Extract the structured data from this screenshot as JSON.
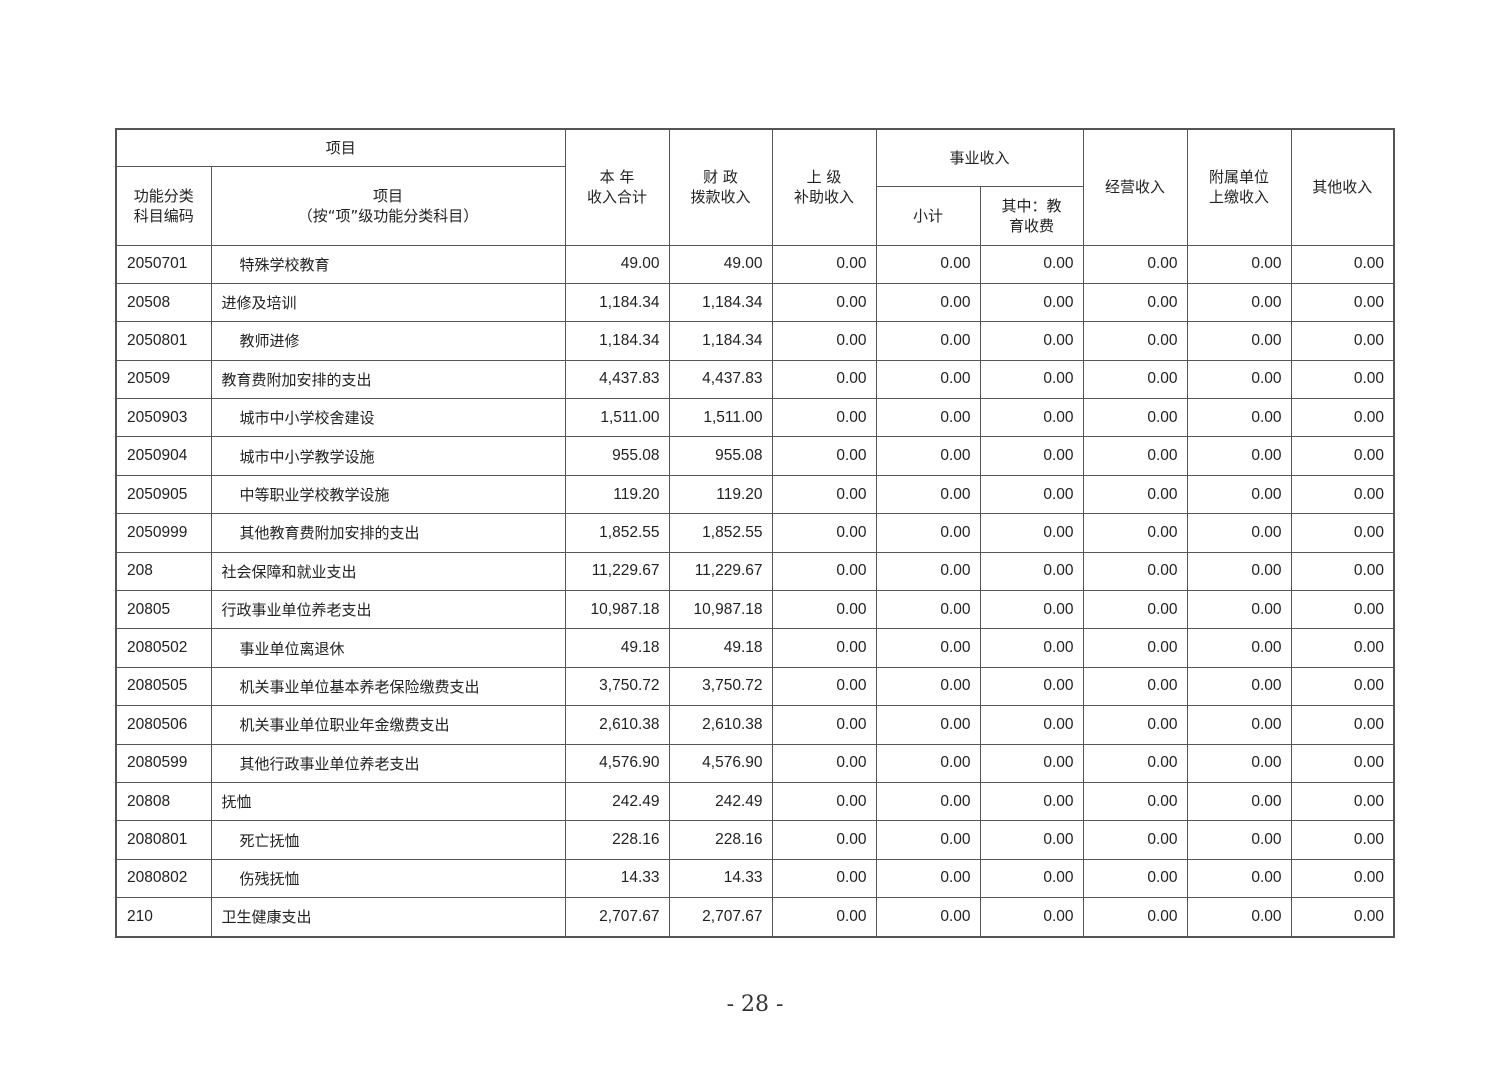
{
  "header": {
    "item_group": "项目",
    "code": "功能分类\n科目编码",
    "item": "项目",
    "item_note": "（按“项”级功能分类科目）",
    "total": "本 年\n收入合计",
    "fiscal": "财 政\n拨款收入",
    "superior": "上 级\n补助收入",
    "business": "事业收入",
    "subtotal": "小计",
    "edu_fee": "其中：教\n育收费",
    "operating": "经营收入",
    "affiliated": "附属单位\n上缴收入",
    "other": "其他收入"
  },
  "rows": [
    {
      "code": "2050701",
      "name": "特殊学校教育",
      "sub": true,
      "values": [
        "49.00",
        "49.00",
        "0.00",
        "0.00",
        "0.00",
        "0.00",
        "0.00",
        "0.00"
      ]
    },
    {
      "code": "20508",
      "name": "进修及培训",
      "sub": false,
      "values": [
        "1,184.34",
        "1,184.34",
        "0.00",
        "0.00",
        "0.00",
        "0.00",
        "0.00",
        "0.00"
      ]
    },
    {
      "code": "2050801",
      "name": "教师进修",
      "sub": true,
      "values": [
        "1,184.34",
        "1,184.34",
        "0.00",
        "0.00",
        "0.00",
        "0.00",
        "0.00",
        "0.00"
      ]
    },
    {
      "code": "20509",
      "name": "教育费附加安排的支出",
      "sub": false,
      "values": [
        "4,437.83",
        "4,437.83",
        "0.00",
        "0.00",
        "0.00",
        "0.00",
        "0.00",
        "0.00"
      ]
    },
    {
      "code": "2050903",
      "name": "城市中小学校舍建设",
      "sub": true,
      "values": [
        "1,511.00",
        "1,511.00",
        "0.00",
        "0.00",
        "0.00",
        "0.00",
        "0.00",
        "0.00"
      ]
    },
    {
      "code": "2050904",
      "name": "城市中小学教学设施",
      "sub": true,
      "values": [
        "955.08",
        "955.08",
        "0.00",
        "0.00",
        "0.00",
        "0.00",
        "0.00",
        "0.00"
      ]
    },
    {
      "code": "2050905",
      "name": "中等职业学校教学设施",
      "sub": true,
      "values": [
        "119.20",
        "119.20",
        "0.00",
        "0.00",
        "0.00",
        "0.00",
        "0.00",
        "0.00"
      ]
    },
    {
      "code": "2050999",
      "name": "其他教育费附加安排的支出",
      "sub": true,
      "values": [
        "1,852.55",
        "1,852.55",
        "0.00",
        "0.00",
        "0.00",
        "0.00",
        "0.00",
        "0.00"
      ]
    },
    {
      "code": "208",
      "name": "社会保障和就业支出",
      "sub": false,
      "values": [
        "11,229.67",
        "11,229.67",
        "0.00",
        "0.00",
        "0.00",
        "0.00",
        "0.00",
        "0.00"
      ]
    },
    {
      "code": "20805",
      "name": "行政事业单位养老支出",
      "sub": false,
      "values": [
        "10,987.18",
        "10,987.18",
        "0.00",
        "0.00",
        "0.00",
        "0.00",
        "0.00",
        "0.00"
      ]
    },
    {
      "code": "2080502",
      "name": "事业单位离退休",
      "sub": true,
      "values": [
        "49.18",
        "49.18",
        "0.00",
        "0.00",
        "0.00",
        "0.00",
        "0.00",
        "0.00"
      ]
    },
    {
      "code": "2080505",
      "name": "机关事业单位基本养老保险缴费支出",
      "sub": true,
      "values": [
        "3,750.72",
        "3,750.72",
        "0.00",
        "0.00",
        "0.00",
        "0.00",
        "0.00",
        "0.00"
      ]
    },
    {
      "code": "2080506",
      "name": "机关事业单位职业年金缴费支出",
      "sub": true,
      "values": [
        "2,610.38",
        "2,610.38",
        "0.00",
        "0.00",
        "0.00",
        "0.00",
        "0.00",
        "0.00"
      ]
    },
    {
      "code": "2080599",
      "name": "其他行政事业单位养老支出",
      "sub": true,
      "values": [
        "4,576.90",
        "4,576.90",
        "0.00",
        "0.00",
        "0.00",
        "0.00",
        "0.00",
        "0.00"
      ]
    },
    {
      "code": "20808",
      "name": "抚恤",
      "sub": false,
      "values": [
        "242.49",
        "242.49",
        "0.00",
        "0.00",
        "0.00",
        "0.00",
        "0.00",
        "0.00"
      ]
    },
    {
      "code": "2080801",
      "name": "死亡抚恤",
      "sub": true,
      "values": [
        "228.16",
        "228.16",
        "0.00",
        "0.00",
        "0.00",
        "0.00",
        "0.00",
        "0.00"
      ]
    },
    {
      "code": "2080802",
      "name": "伤残抚恤",
      "sub": true,
      "values": [
        "14.33",
        "14.33",
        "0.00",
        "0.00",
        "0.00",
        "0.00",
        "0.00",
        "0.00"
      ]
    },
    {
      "code": "210",
      "name": "卫生健康支出",
      "sub": false,
      "values": [
        "2,707.67",
        "2,707.67",
        "0.00",
        "0.00",
        "0.00",
        "0.00",
        "0.00",
        "0.00"
      ]
    }
  ],
  "page_number": "- 28 -"
}
